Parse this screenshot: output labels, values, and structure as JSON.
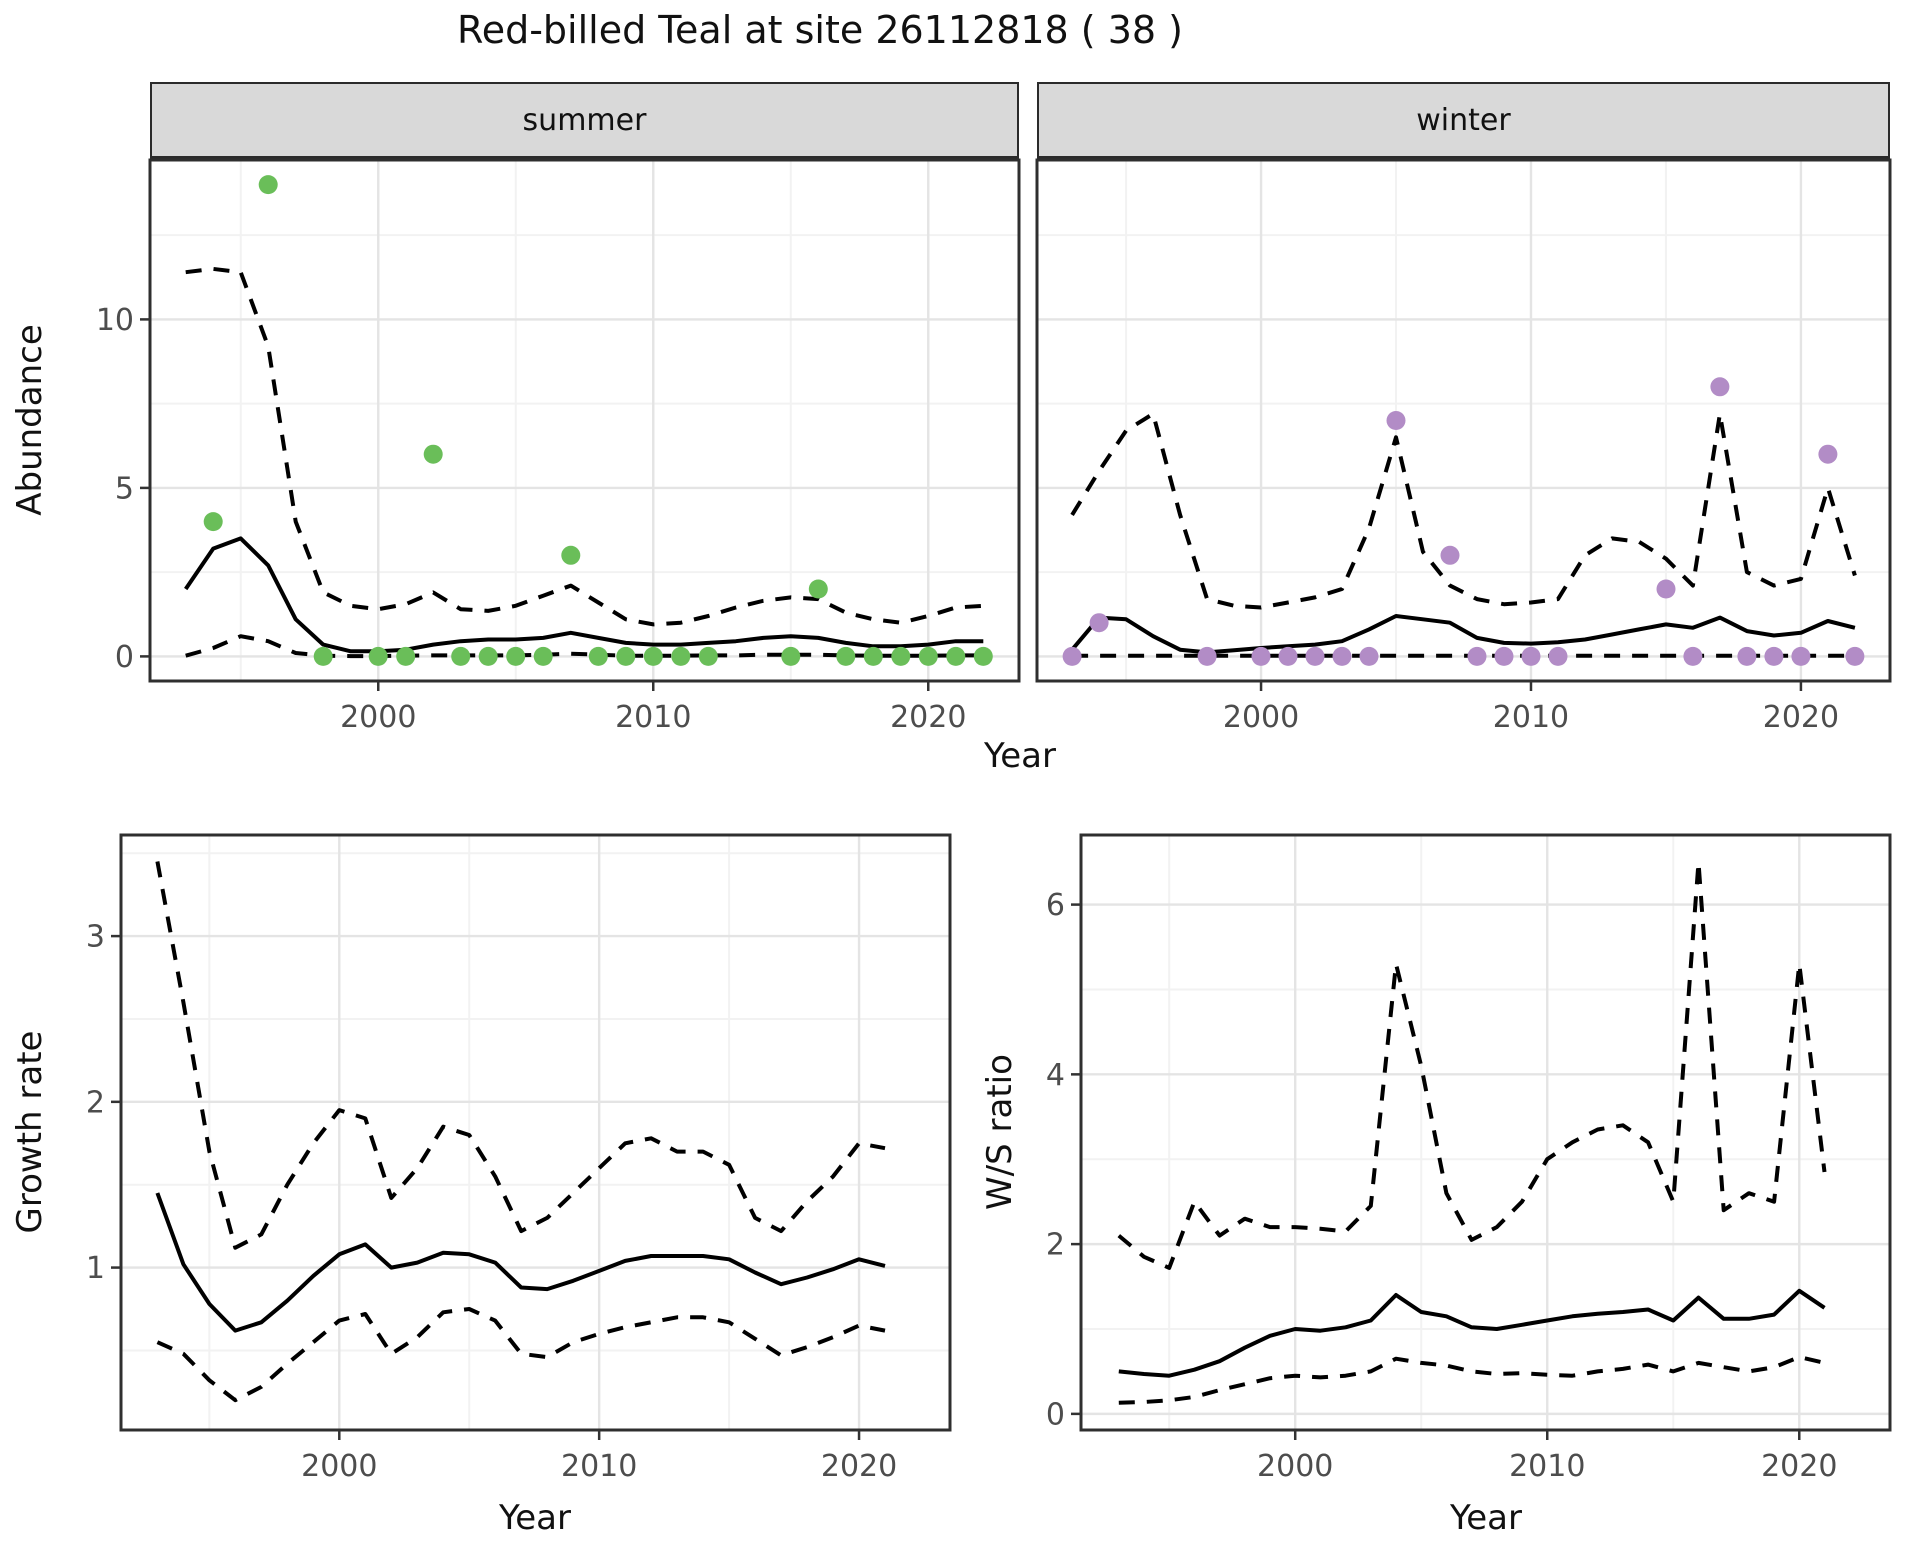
{
  "title": "Red-billed Teal at site 26112818 ( 38 )",
  "facets": {
    "summer": "summer",
    "winter": "winter"
  },
  "axis_labels": {
    "x_top": "Year",
    "x_growth": "Year",
    "x_ws": "Year",
    "y_abundance": "Abundance",
    "y_growth": "Growth rate",
    "y_ws": "W/S ratio"
  },
  "colors": {
    "summer_point": "#6abe59",
    "winter_point": "#b28cc6",
    "line": "#000000",
    "grid_major": "#e4e4e4",
    "grid_minor": "#f2f2f2",
    "panel_border": "#2f2f2f",
    "strip_bg": "#d9d9d9",
    "tick_text": "#4d4d4d"
  },
  "chart_data": [
    {
      "id": "summer",
      "type": "line",
      "facet": "summer",
      "xlabel": "Year",
      "ylabel": "Abundance",
      "xlim": [
        1991.7,
        2023.3
      ],
      "ylim": [
        -0.73,
        14.73
      ],
      "xticks": [
        2000,
        2010,
        2020
      ],
      "xticklabels": [
        "2000",
        "2010",
        "2020"
      ],
      "xminor": [
        1995,
        2005,
        2015
      ],
      "yticks": [
        0,
        5,
        10
      ],
      "yticklabels": [
        "0",
        "5",
        "10"
      ],
      "yminor": [
        2.5,
        7.5,
        12.5
      ],
      "show_yticklabels": true,
      "point_color": "#6abe59",
      "points": {
        "x": [
          1994,
          1996,
          1998,
          2000,
          2001,
          2002,
          2003,
          2004,
          2005,
          2006,
          2007,
          2008,
          2009,
          2010,
          2011,
          2012,
          2015,
          2016,
          2017,
          2018,
          2019,
          2020,
          2021,
          2022
        ],
        "y": [
          4,
          14,
          0,
          0,
          0,
          6,
          0,
          0,
          0,
          0,
          3,
          0,
          0,
          0,
          0,
          0,
          0,
          2,
          0,
          0,
          0,
          0,
          0,
          0
        ]
      },
      "series": [
        {
          "name": "lower-ci",
          "style": "dashed",
          "x": [
            1993,
            1994,
            1995,
            1996,
            1997,
            1998,
            1999,
            2000,
            2001,
            2002,
            2003,
            2004,
            2005,
            2006,
            2007,
            2008,
            2009,
            2010,
            2011,
            2012,
            2013,
            2014,
            2015,
            2016,
            2017,
            2018,
            2019,
            2020,
            2021,
            2022
          ],
          "y": [
            0.02,
            0.25,
            0.6,
            0.45,
            0.1,
            0.02,
            0.01,
            0.01,
            0.02,
            0.03,
            0.03,
            0.03,
            0.03,
            0.05,
            0.08,
            0.05,
            0.02,
            0.02,
            0.02,
            0.03,
            0.03,
            0.05,
            0.05,
            0.05,
            0.03,
            0.02,
            0.02,
            0.02,
            0.03,
            0.03
          ]
        },
        {
          "name": "upper-ci",
          "style": "dashed",
          "x": [
            1993,
            1994,
            1995,
            1996,
            1997,
            1998,
            1999,
            2000,
            2001,
            2002,
            2003,
            2004,
            2005,
            2006,
            2007,
            2008,
            2009,
            2010,
            2011,
            2012,
            2013,
            2014,
            2015,
            2016,
            2017,
            2018,
            2019,
            2020,
            2021,
            2022
          ],
          "y": [
            11.4,
            11.5,
            11.4,
            9.2,
            4.0,
            1.9,
            1.5,
            1.4,
            1.55,
            1.9,
            1.4,
            1.35,
            1.5,
            1.8,
            2.1,
            1.6,
            1.1,
            0.95,
            1.0,
            1.2,
            1.45,
            1.65,
            1.75,
            1.7,
            1.3,
            1.1,
            1.0,
            1.2,
            1.45,
            1.5
          ]
        },
        {
          "name": "mean",
          "style": "solid",
          "x": [
            1993,
            1994,
            1995,
            1996,
            1997,
            1998,
            1999,
            2000,
            2001,
            2002,
            2003,
            2004,
            2005,
            2006,
            2007,
            2008,
            2009,
            2010,
            2011,
            2012,
            2013,
            2014,
            2015,
            2016,
            2017,
            2018,
            2019,
            2020,
            2021,
            2022
          ],
          "y": [
            2.0,
            3.2,
            3.5,
            2.7,
            1.1,
            0.35,
            0.15,
            0.15,
            0.2,
            0.35,
            0.45,
            0.5,
            0.5,
            0.55,
            0.7,
            0.55,
            0.4,
            0.35,
            0.35,
            0.4,
            0.45,
            0.55,
            0.6,
            0.55,
            0.4,
            0.3,
            0.3,
            0.35,
            0.45,
            0.45
          ]
        }
      ]
    },
    {
      "id": "winter",
      "type": "line",
      "facet": "winter",
      "xlabel": "Year",
      "ylabel": "Abundance",
      "xlim": [
        1991.7,
        2023.3
      ],
      "ylim": [
        -0.73,
        14.73
      ],
      "xticks": [
        2000,
        2010,
        2020
      ],
      "xticklabels": [
        "2000",
        "2010",
        "2020"
      ],
      "xminor": [
        1995,
        2005,
        2015
      ],
      "yticks": [
        0,
        5,
        10
      ],
      "yticklabels": [
        "0",
        "5",
        "10"
      ],
      "yminor": [
        2.5,
        7.5,
        12.5
      ],
      "show_yticklabels": false,
      "point_color": "#b28cc6",
      "points": {
        "x": [
          1993,
          1994,
          1998,
          2000,
          2001,
          2002,
          2003,
          2004,
          2005,
          2007,
          2008,
          2009,
          2010,
          2011,
          2015,
          2016,
          2017,
          2018,
          2019,
          2020,
          2021,
          2022
        ],
        "y": [
          0,
          1,
          0,
          0,
          0,
          0,
          0,
          0,
          7,
          3,
          0,
          0,
          0,
          0,
          2,
          0,
          8,
          0,
          0,
          0,
          6,
          0
        ]
      },
      "series": [
        {
          "name": "lower-ci",
          "style": "dashed",
          "x": [
            1993,
            1994,
            1995,
            1996,
            1997,
            1998,
            1999,
            2000,
            2001,
            2002,
            2003,
            2004,
            2005,
            2006,
            2007,
            2008,
            2009,
            2010,
            2011,
            2012,
            2013,
            2014,
            2015,
            2016,
            2017,
            2018,
            2019,
            2020,
            2021,
            2022
          ],
          "y": [
            0.02,
            0.02,
            0.02,
            0.02,
            0.02,
            0.02,
            0.02,
            0.02,
            0.02,
            0.02,
            0.02,
            0.02,
            0.02,
            0.02,
            0.02,
            0.02,
            0.02,
            0.02,
            0.02,
            0.02,
            0.02,
            0.02,
            0.02,
            0.02,
            0.02,
            0.02,
            0.02,
            0.02,
            0.02,
            0.02
          ]
        },
        {
          "name": "upper-ci",
          "style": "dashed",
          "x": [
            1993,
            1994,
            1995,
            1996,
            1997,
            1998,
            1999,
            2000,
            2001,
            2002,
            2003,
            2004,
            2005,
            2006,
            2007,
            2008,
            2009,
            2010,
            2011,
            2012,
            2013,
            2014,
            2015,
            2016,
            2017,
            2018,
            2019,
            2020,
            2021,
            2022
          ],
          "y": [
            4.2,
            5.5,
            6.7,
            7.2,
            4.2,
            1.7,
            1.5,
            1.45,
            1.6,
            1.75,
            2.0,
            3.8,
            6.5,
            3.1,
            2.1,
            1.7,
            1.55,
            1.6,
            1.7,
            3.0,
            3.5,
            3.4,
            2.9,
            2.1,
            7.2,
            2.5,
            2.1,
            2.3,
            5.0,
            2.4
          ]
        },
        {
          "name": "mean",
          "style": "solid",
          "x": [
            1993,
            1994,
            1995,
            1996,
            1997,
            1998,
            1999,
            2000,
            2001,
            2002,
            2003,
            2004,
            2005,
            2006,
            2007,
            2008,
            2009,
            2010,
            2011,
            2012,
            2013,
            2014,
            2015,
            2016,
            2017,
            2018,
            2019,
            2020,
            2021,
            2022
          ],
          "y": [
            0.2,
            1.15,
            1.1,
            0.6,
            0.2,
            0.12,
            0.18,
            0.25,
            0.3,
            0.35,
            0.45,
            0.8,
            1.2,
            1.1,
            1.0,
            0.55,
            0.4,
            0.38,
            0.42,
            0.5,
            0.65,
            0.8,
            0.95,
            0.85,
            1.15,
            0.75,
            0.62,
            0.7,
            1.05,
            0.85
          ]
        }
      ]
    },
    {
      "id": "growth",
      "type": "line",
      "xlabel": "Year",
      "ylabel": "Growth rate",
      "xlim": [
        1991.6,
        2023.5
      ],
      "ylim": [
        0.02,
        3.61
      ],
      "xticks": [
        2000,
        2010,
        2020
      ],
      "xticklabels": [
        "2000",
        "2010",
        "2020"
      ],
      "xminor": [
        1995,
        2005,
        2015
      ],
      "yticks": [
        1,
        2,
        3
      ],
      "yticklabels": [
        "1",
        "2",
        "3"
      ],
      "yminor": [
        0.5,
        1.5,
        2.5,
        3.5
      ],
      "show_yticklabels": true,
      "series": [
        {
          "name": "lower-ci",
          "style": "dashed",
          "x": [
            1993,
            1994,
            1995,
            1996,
            1997,
            1998,
            1999,
            2000,
            2001,
            2002,
            2003,
            2004,
            2005,
            2006,
            2007,
            2008,
            2009,
            2010,
            2011,
            2012,
            2013,
            2014,
            2015,
            2016,
            2017,
            2018,
            2019,
            2020,
            2021
          ],
          "y": [
            0.55,
            0.48,
            0.32,
            0.2,
            0.28,
            0.42,
            0.55,
            0.68,
            0.72,
            0.48,
            0.58,
            0.73,
            0.75,
            0.68,
            0.48,
            0.46,
            0.55,
            0.6,
            0.64,
            0.67,
            0.7,
            0.7,
            0.67,
            0.57,
            0.47,
            0.52,
            0.58,
            0.65,
            0.62
          ]
        },
        {
          "name": "upper-ci",
          "style": "dashed",
          "x": [
            1993,
            1994,
            1995,
            1996,
            1997,
            1998,
            1999,
            2000,
            2001,
            2002,
            2003,
            2004,
            2005,
            2006,
            2007,
            2008,
            2009,
            2010,
            2011,
            2012,
            2013,
            2014,
            2015,
            2016,
            2017,
            2018,
            2019,
            2020,
            2021
          ],
          "y": [
            3.45,
            2.6,
            1.7,
            1.12,
            1.2,
            1.5,
            1.75,
            1.95,
            1.9,
            1.42,
            1.6,
            1.85,
            1.8,
            1.55,
            1.22,
            1.3,
            1.45,
            1.6,
            1.75,
            1.78,
            1.7,
            1.7,
            1.62,
            1.3,
            1.22,
            1.4,
            1.55,
            1.75,
            1.72
          ]
        },
        {
          "name": "mean",
          "style": "solid",
          "x": [
            1993,
            1994,
            1995,
            1996,
            1997,
            1998,
            1999,
            2000,
            2001,
            2002,
            2003,
            2004,
            2005,
            2006,
            2007,
            2008,
            2009,
            2010,
            2011,
            2012,
            2013,
            2014,
            2015,
            2016,
            2017,
            2018,
            2019,
            2020,
            2021
          ],
          "y": [
            1.45,
            1.02,
            0.78,
            0.62,
            0.67,
            0.8,
            0.95,
            1.08,
            1.14,
            1.0,
            1.03,
            1.09,
            1.08,
            1.03,
            0.88,
            0.87,
            0.92,
            0.98,
            1.04,
            1.07,
            1.07,
            1.07,
            1.05,
            0.97,
            0.9,
            0.94,
            0.99,
            1.05,
            1.01
          ]
        }
      ]
    },
    {
      "id": "ws",
      "type": "line",
      "xlabel": "Year",
      "ylabel": "W/S ratio",
      "xlim": [
        1991.5,
        2023.6
      ],
      "ylim": [
        -0.19,
        6.82
      ],
      "xticks": [
        2000,
        2010,
        2020
      ],
      "xticklabels": [
        "2000",
        "2010",
        "2020"
      ],
      "xminor": [
        1995,
        2005,
        2015
      ],
      "yticks": [
        0,
        2,
        4,
        6
      ],
      "yticklabels": [
        "0",
        "2",
        "4",
        "6"
      ],
      "yminor": [
        1,
        3,
        5
      ],
      "show_yticklabels": true,
      "series": [
        {
          "name": "lower-ci",
          "style": "dashed",
          "x": [
            1993,
            1994,
            1995,
            1996,
            1997,
            1998,
            1999,
            2000,
            2001,
            2002,
            2003,
            2004,
            2005,
            2006,
            2007,
            2008,
            2009,
            2010,
            2011,
            2012,
            2013,
            2014,
            2015,
            2016,
            2017,
            2018,
            2019,
            2020,
            2021
          ],
          "y": [
            0.13,
            0.14,
            0.16,
            0.2,
            0.28,
            0.35,
            0.42,
            0.45,
            0.43,
            0.45,
            0.5,
            0.65,
            0.6,
            0.57,
            0.5,
            0.47,
            0.48,
            0.46,
            0.45,
            0.5,
            0.53,
            0.58,
            0.5,
            0.6,
            0.55,
            0.5,
            0.55,
            0.67,
            0.6
          ]
        },
        {
          "name": "upper-ci",
          "style": "dashed",
          "x": [
            1993,
            1994,
            1995,
            1996,
            1997,
            1998,
            1999,
            2000,
            2001,
            2002,
            2003,
            2004,
            2005,
            2006,
            2007,
            2008,
            2009,
            2010,
            2011,
            2012,
            2013,
            2014,
            2015,
            2016,
            2017,
            2018,
            2019,
            2020,
            2021
          ],
          "y": [
            2.1,
            1.85,
            1.72,
            2.5,
            2.1,
            2.3,
            2.2,
            2.2,
            2.18,
            2.15,
            2.45,
            5.3,
            4.1,
            2.6,
            2.05,
            2.2,
            2.5,
            3.0,
            3.2,
            3.35,
            3.4,
            3.2,
            2.5,
            6.5,
            2.4,
            2.6,
            2.5,
            5.3,
            2.85
          ]
        },
        {
          "name": "mean",
          "style": "solid",
          "x": [
            1993,
            1994,
            1995,
            1996,
            1997,
            1998,
            1999,
            2000,
            2001,
            2002,
            2003,
            2004,
            2005,
            2006,
            2007,
            2008,
            2009,
            2010,
            2011,
            2012,
            2013,
            2014,
            2015,
            2016,
            2017,
            2018,
            2019,
            2020,
            2021
          ],
          "y": [
            0.5,
            0.47,
            0.45,
            0.52,
            0.62,
            0.78,
            0.92,
            1.0,
            0.98,
            1.02,
            1.1,
            1.4,
            1.2,
            1.15,
            1.02,
            1.0,
            1.05,
            1.1,
            1.15,
            1.18,
            1.2,
            1.23,
            1.1,
            1.37,
            1.12,
            1.12,
            1.17,
            1.45,
            1.25
          ]
        }
      ]
    }
  ]
}
